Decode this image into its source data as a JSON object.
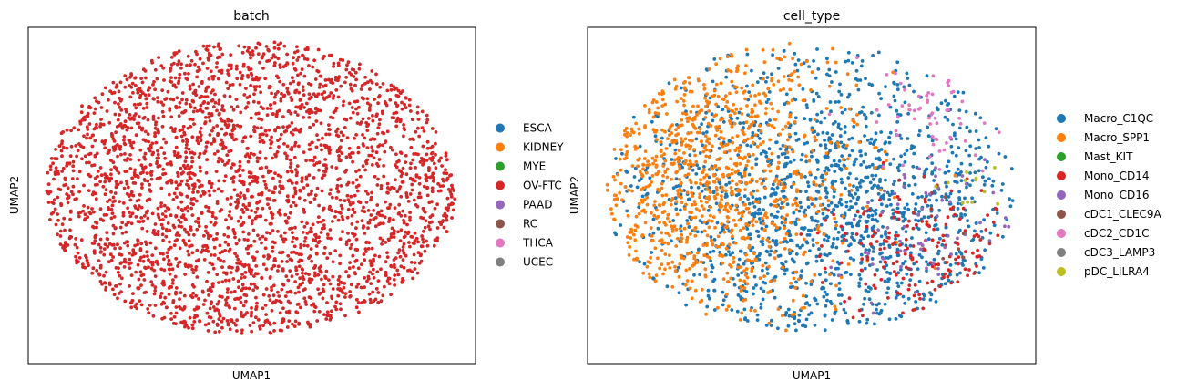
{
  "chart_data": [
    {
      "type": "scatter",
      "title": "batch",
      "xlabel": "UMAP1",
      "ylabel": "UMAP2",
      "xticks": [],
      "yticks": [],
      "grid": false,
      "legend_position": "right",
      "legend": [
        {
          "label": "ESCA",
          "color": "#1f77b4"
        },
        {
          "label": "KIDNEY",
          "color": "#ff7f0e"
        },
        {
          "label": "MYE",
          "color": "#2ca02c"
        },
        {
          "label": "OV-FTC",
          "color": "#d62728"
        },
        {
          "label": "PAAD",
          "color": "#9467bd"
        },
        {
          "label": "RC",
          "color": "#8c564b"
        },
        {
          "label": "THCA",
          "color": "#e377c2"
        },
        {
          "label": "UCEC",
          "color": "#7f7f7f"
        }
      ],
      "visible_points": [
        {
          "category": "OV-FTC",
          "approx_count": 3000
        }
      ]
    },
    {
      "type": "scatter",
      "title": "cell_type",
      "xlabel": "UMAP1",
      "ylabel": "UMAP2",
      "xticks": [],
      "yticks": [],
      "grid": false,
      "legend_position": "right",
      "legend": [
        {
          "label": "Macro_C1QC",
          "color": "#1f77b4"
        },
        {
          "label": "Macro_SPP1",
          "color": "#ff7f0e"
        },
        {
          "label": "Mast_KIT",
          "color": "#2ca02c"
        },
        {
          "label": "Mono_CD14",
          "color": "#d62728"
        },
        {
          "label": "Mono_CD16",
          "color": "#9467bd"
        },
        {
          "label": "cDC1_CLEC9A",
          "color": "#8c564b"
        },
        {
          "label": "cDC2_CD1C",
          "color": "#e377c2"
        },
        {
          "label": "cDC3_LAMP3",
          "color": "#7f7f7f"
        },
        {
          "label": "pDC_LILRA4",
          "color": "#bcbd22"
        }
      ],
      "visible_points": [
        {
          "category": "Macro_C1QC",
          "approx_count": 1500
        },
        {
          "category": "Macro_SPP1",
          "approx_count": 1000
        },
        {
          "category": "Mono_CD14",
          "approx_count": 180
        },
        {
          "category": "Mono_CD16",
          "approx_count": 60
        },
        {
          "category": "cDC2_CD1C",
          "approx_count": 60
        },
        {
          "category": "pDC_LILRA4",
          "approx_count": 12
        },
        {
          "category": "cDC1_CLEC9A",
          "approx_count": 6
        }
      ]
    }
  ]
}
